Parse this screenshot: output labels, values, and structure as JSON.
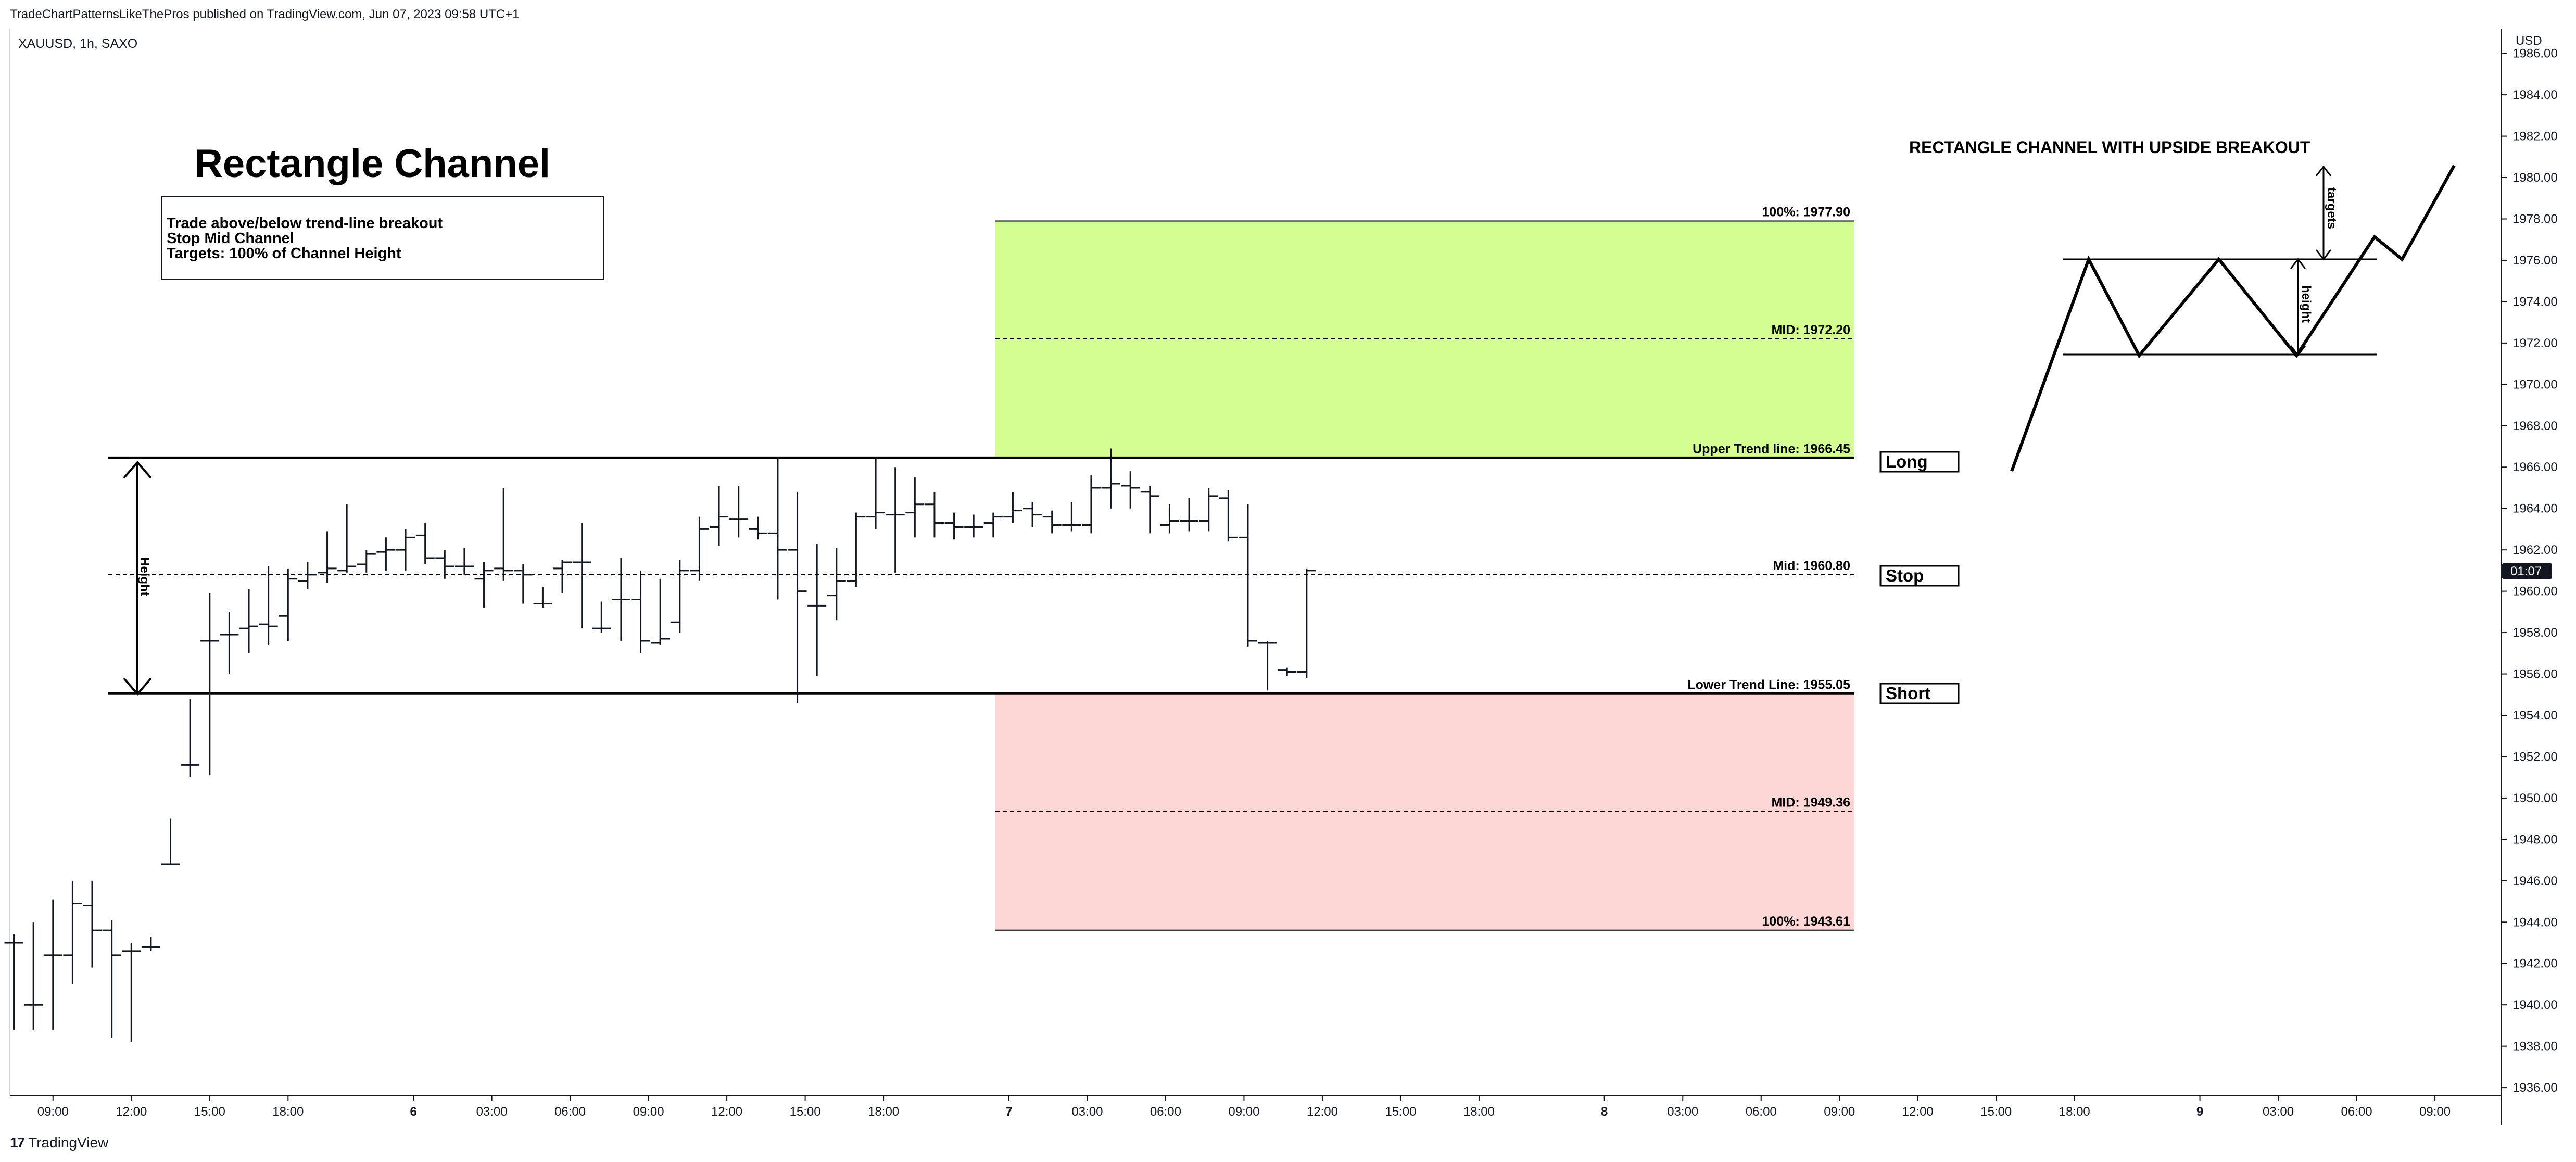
{
  "header": {
    "published_by": "TradeChartPatternsLikeThePros published on TradingView.com, Jun 07, 2023 09:58 UTC+1",
    "symbol": "XAUUSD, 1h, SAXO"
  },
  "footer": {
    "logo_text": "TradingView",
    "logo_mark": "17"
  },
  "colors": {
    "target_zone_up": "#d4fe92",
    "target_zone_down": "#fdd6d6",
    "bar": "#131722",
    "price_badge_bg": "#131722"
  },
  "icons": [
    "tradingview-logo-icon",
    "double-arrow-icon"
  ],
  "annotations": {
    "title": "Rectangle Channel",
    "notes": [
      "Trade above/below trend-line breakout",
      "Stop Mid Channel",
      "Targets: 100% of Channel Height"
    ],
    "height_label": "Height",
    "boxes": [
      "Long",
      "Stop",
      "Short"
    ],
    "diagram_title": "RECTANGLE CHANNEL WITH UPSIDE BREAKOUT",
    "diagram_targets_label": "targets",
    "diagram_height_label": "height"
  },
  "chart_data": {
    "type": "ohlc",
    "symbol": "XAUUSD",
    "timeframe": "1h",
    "yunit": "USD",
    "ylim": [
      1935.6,
      1987.2
    ],
    "xlim": [
      -0.1,
      63.5
    ],
    "y_ticks": [
      "1986.00",
      "1984.00",
      "1982.00",
      "1980.00",
      "1978.00",
      "1976.00",
      "1974.00",
      "1972.00",
      "1970.00",
      "1968.00",
      "1966.00",
      "1964.00",
      "1962.00",
      "1960.00",
      "1958.00",
      "1956.00",
      "1954.00",
      "1952.00",
      "1950.00",
      "1948.00",
      "1946.00",
      "1944.00",
      "1942.00",
      "1940.00",
      "1938.00",
      "1936.00"
    ],
    "x_ticks": [
      {
        "i": 1,
        "label": "09:00"
      },
      {
        "i": 3,
        "label": "12:00"
      },
      {
        "i": 5,
        "label": "15:00"
      },
      {
        "i": 7,
        "label": "18:00"
      },
      {
        "i": 10.2,
        "label": "6"
      },
      {
        "i": 12.2,
        "label": "03:00"
      },
      {
        "i": 14.2,
        "label": "06:00"
      },
      {
        "i": 16.2,
        "label": "09:00"
      },
      {
        "i": 18.2,
        "label": "12:00"
      },
      {
        "i": 20.2,
        "label": "15:00"
      },
      {
        "i": 22.2,
        "label": "18:00"
      },
      {
        "i": 25.4,
        "label": "7"
      },
      {
        "i": 27.4,
        "label": "03:00"
      },
      {
        "i": 29.4,
        "label": "06:00"
      },
      {
        "i": 31.4,
        "label": "09:00"
      },
      {
        "i": 33.4,
        "label": "12:00"
      },
      {
        "i": 35.4,
        "label": "15:00"
      },
      {
        "i": 37.4,
        "label": "18:00"
      },
      {
        "i": 40.6,
        "label": "8"
      },
      {
        "i": 42.6,
        "label": "03:00"
      },
      {
        "i": 44.6,
        "label": "06:00"
      },
      {
        "i": 46.6,
        "label": "09:00"
      },
      {
        "i": 48.6,
        "label": "12:00"
      },
      {
        "i": 50.6,
        "label": "15:00"
      },
      {
        "i": 52.6,
        "label": "18:00"
      },
      {
        "i": 55.8,
        "label": "9"
      },
      {
        "i": 57.8,
        "label": "03:00"
      },
      {
        "i": 59.8,
        "label": "06:00"
      },
      {
        "i": 61.8,
        "label": "09:00"
      }
    ],
    "bars": [
      {
        "i": 0,
        "o": 1943.0,
        "h": 1943.4,
        "l": 1938.8,
        "c": 1943.0
      },
      {
        "i": 0.5,
        "o": 1940.0,
        "h": 1944.0,
        "l": 1938.8,
        "c": 1940.0
      },
      {
        "i": 1,
        "o": 1942.4,
        "h": 1945.1,
        "l": 1938.8,
        "c": 1942.4
      },
      {
        "i": 1.5,
        "o": 1942.4,
        "h": 1946.0,
        "l": 1941.0,
        "c": 1944.9
      },
      {
        "i": 2,
        "o": 1944.8,
        "h": 1946.0,
        "l": 1941.8,
        "c": 1943.6
      },
      {
        "i": 2.5,
        "o": 1943.6,
        "h": 1944.1,
        "l": 1938.4,
        "c": 1942.4
      },
      {
        "i": 3,
        "o": 1942.6,
        "h": 1943.0,
        "l": 1938.2,
        "c": 1942.6
      },
      {
        "i": 3.5,
        "o": 1942.8,
        "h": 1943.3,
        "l": 1942.6,
        "c": 1942.8
      },
      {
        "i": 4,
        "o": 1946.8,
        "h": 1949.0,
        "l": 1946.8,
        "c": 1946.8
      },
      {
        "i": 4.5,
        "o": 1951.6,
        "h": 1954.8,
        "l": 1951.0,
        "c": 1951.6
      },
      {
        "i": 5,
        "o": 1957.6,
        "h": 1959.9,
        "l": 1951.1,
        "c": 1957.6
      },
      {
        "i": 5.5,
        "o": 1957.9,
        "h": 1959.0,
        "l": 1956.0,
        "c": 1957.9
      },
      {
        "i": 6,
        "o": 1958.2,
        "h": 1960.1,
        "l": 1957.0,
        "c": 1958.3
      },
      {
        "i": 6.5,
        "o": 1958.4,
        "h": 1961.2,
        "l": 1957.4,
        "c": 1958.3
      },
      {
        "i": 7,
        "o": 1958.8,
        "h": 1961.1,
        "l": 1957.6,
        "c": 1960.6
      },
      {
        "i": 7.5,
        "o": 1960.5,
        "h": 1961.4,
        "l": 1960.1,
        "c": 1960.8
      },
      {
        "i": 8,
        "o": 1960.9,
        "h": 1962.9,
        "l": 1960.4,
        "c": 1961.1
      },
      {
        "i": 8.5,
        "o": 1961.0,
        "h": 1964.2,
        "l": 1960.9,
        "c": 1961.2
      },
      {
        "i": 9,
        "o": 1961.3,
        "h": 1962.0,
        "l": 1960.9,
        "c": 1961.8
      },
      {
        "i": 9.5,
        "o": 1961.9,
        "h": 1962.6,
        "l": 1961.0,
        "c": 1962.0
      },
      {
        "i": 10,
        "o": 1962.0,
        "h": 1963.0,
        "l": 1961.0,
        "c": 1962.6
      },
      {
        "i": 10.5,
        "o": 1962.7,
        "h": 1963.3,
        "l": 1961.3,
        "c": 1961.6
      },
      {
        "i": 11,
        "o": 1961.6,
        "h": 1962.0,
        "l": 1960.6,
        "c": 1961.2
      },
      {
        "i": 11.5,
        "o": 1961.2,
        "h": 1962.1,
        "l": 1960.8,
        "c": 1961.2
      },
      {
        "i": 12,
        "o": 1960.6,
        "h": 1961.4,
        "l": 1959.2,
        "c": 1961.0
      },
      {
        "i": 12.5,
        "o": 1961.1,
        "h": 1965.0,
        "l": 1960.5,
        "c": 1961.0
      },
      {
        "i": 13,
        "o": 1961.0,
        "h": 1961.3,
        "l": 1959.4,
        "c": 1960.8
      },
      {
        "i": 13.5,
        "o": 1959.4,
        "h": 1960.2,
        "l": 1959.2,
        "c": 1959.4
      },
      {
        "i": 14,
        "o": 1961.1,
        "h": 1961.5,
        "l": 1959.9,
        "c": 1961.4
      },
      {
        "i": 14.5,
        "o": 1961.4,
        "h": 1963.3,
        "l": 1958.2,
        "c": 1961.4
      },
      {
        "i": 15,
        "o": 1958.2,
        "h": 1959.5,
        "l": 1958.0,
        "c": 1958.2
      },
      {
        "i": 15.5,
        "o": 1959.6,
        "h": 1961.6,
        "l": 1957.6,
        "c": 1959.6
      },
      {
        "i": 16,
        "o": 1959.6,
        "h": 1961.0,
        "l": 1957.0,
        "c": 1957.6
      },
      {
        "i": 16.5,
        "o": 1957.5,
        "h": 1960.6,
        "l": 1957.4,
        "c": 1957.7
      },
      {
        "i": 17,
        "o": 1958.5,
        "h": 1961.5,
        "l": 1958.0,
        "c": 1961.0
      },
      {
        "i": 17.5,
        "o": 1961.0,
        "h": 1963.6,
        "l": 1960.5,
        "c": 1963.0
      },
      {
        "i": 18,
        "o": 1963.1,
        "h": 1965.1,
        "l": 1962.2,
        "c": 1963.6
      },
      {
        "i": 18.5,
        "o": 1963.5,
        "h": 1965.1,
        "l": 1962.6,
        "c": 1963.5
      },
      {
        "i": 19,
        "o": 1963.0,
        "h": 1963.6,
        "l": 1962.5,
        "c": 1962.8
      },
      {
        "i": 19.5,
        "o": 1962.8,
        "h": 1966.5,
        "l": 1959.6,
        "c": 1962.0
      },
      {
        "i": 20,
        "o": 1962.0,
        "h": 1964.8,
        "l": 1954.6,
        "c": 1960.0
      },
      {
        "i": 20.5,
        "o": 1959.3,
        "h": 1962.3,
        "l": 1955.9,
        "c": 1959.3
      },
      {
        "i": 21,
        "o": 1959.8,
        "h": 1962.1,
        "l": 1958.6,
        "c": 1960.5
      },
      {
        "i": 21.5,
        "o": 1960.5,
        "h": 1963.8,
        "l": 1960.2,
        "c": 1963.6
      },
      {
        "i": 22,
        "o": 1963.6,
        "h": 1966.5,
        "l": 1963.0,
        "c": 1963.8
      },
      {
        "i": 22.5,
        "o": 1963.7,
        "h": 1966.0,
        "l": 1960.9,
        "c": 1963.7
      },
      {
        "i": 23,
        "o": 1963.8,
        "h": 1965.5,
        "l": 1962.6,
        "c": 1964.2
      },
      {
        "i": 23.5,
        "o": 1964.2,
        "h": 1964.8,
        "l": 1962.6,
        "c": 1963.3
      },
      {
        "i": 24,
        "o": 1963.3,
        "h": 1963.8,
        "l": 1962.5,
        "c": 1963.1
      },
      {
        "i": 24.5,
        "o": 1963.1,
        "h": 1963.7,
        "l": 1962.6,
        "c": 1963.1
      },
      {
        "i": 25,
        "o": 1963.3,
        "h": 1963.8,
        "l": 1962.6,
        "c": 1963.6
      },
      {
        "i": 25.5,
        "o": 1963.6,
        "h": 1964.8,
        "l": 1963.3,
        "c": 1963.9
      },
      {
        "i": 26,
        "o": 1964.0,
        "h": 1964.3,
        "l": 1963.1,
        "c": 1963.7
      },
      {
        "i": 26.5,
        "o": 1963.6,
        "h": 1963.9,
        "l": 1962.8,
        "c": 1963.2
      },
      {
        "i": 27,
        "o": 1963.2,
        "h": 1964.3,
        "l": 1962.9,
        "c": 1963.2
      },
      {
        "i": 27.5,
        "o": 1963.2,
        "h": 1965.6,
        "l": 1962.8,
        "c": 1965.0
      },
      {
        "i": 28,
        "o": 1965.0,
        "h": 1966.9,
        "l": 1964.0,
        "c": 1965.2
      },
      {
        "i": 28.5,
        "o": 1965.1,
        "h": 1965.8,
        "l": 1964.0,
        "c": 1965.0
      },
      {
        "i": 29,
        "o": 1964.8,
        "h": 1965.1,
        "l": 1962.8,
        "c": 1964.6
      },
      {
        "i": 29.5,
        "o": 1963.2,
        "h": 1964.2,
        "l": 1962.8,
        "c": 1963.4
      },
      {
        "i": 30,
        "o": 1963.4,
        "h": 1964.5,
        "l": 1962.9,
        "c": 1963.4
      },
      {
        "i": 30.5,
        "o": 1963.4,
        "h": 1965.0,
        "l": 1962.9,
        "c": 1964.6
      },
      {
        "i": 31,
        "o": 1964.5,
        "h": 1964.9,
        "l": 1962.4,
        "c": 1962.6
      },
      {
        "i": 31.5,
        "o": 1962.6,
        "h": 1964.2,
        "l": 1957.3,
        "c": 1957.6
      },
      {
        "i": 32,
        "o": 1957.5,
        "h": 1957.6,
        "l": 1955.2,
        "c": 1957.5
      },
      {
        "i": 32.5,
        "o": 1956.2,
        "h": 1956.3,
        "l": 1955.9,
        "c": 1956.1
      },
      {
        "i": 33,
        "o": 1956.1,
        "h": 1961.1,
        "l": 1955.8,
        "c": 1961.0
      }
    ],
    "levels": [
      {
        "key": "upper_100",
        "label": "100%: 1977.90",
        "value": 1977.9,
        "style": "solid"
      },
      {
        "key": "upper_mid",
        "label": "MID: 1972.20",
        "value": 1972.2,
        "style": "dashed"
      },
      {
        "key": "upper_trend",
        "label": "Upper Trend line: 1966.45",
        "value": 1966.45,
        "style": "solid-thick"
      },
      {
        "key": "mid",
        "label": "Mid: 1960.80",
        "value": 1960.8,
        "style": "dashed"
      },
      {
        "key": "lower_trend",
        "label": "Lower Trend Line: 1955.05",
        "value": 1955.05,
        "style": "solid-thick"
      },
      {
        "key": "lower_mid",
        "label": "MID: 1949.36",
        "value": 1949.36,
        "style": "dashed"
      },
      {
        "key": "lower_100",
        "label": "100%: 1943.61",
        "value": 1943.61,
        "style": "solid"
      }
    ],
    "last_price_badge": "01:07",
    "last_price": 1961.2
  }
}
